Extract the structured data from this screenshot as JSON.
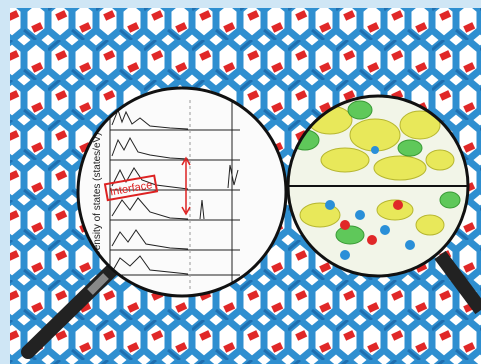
{
  "left_lens": {
    "axis_label": "Density of states (states/eV)",
    "stamp": "Interface"
  }
}
